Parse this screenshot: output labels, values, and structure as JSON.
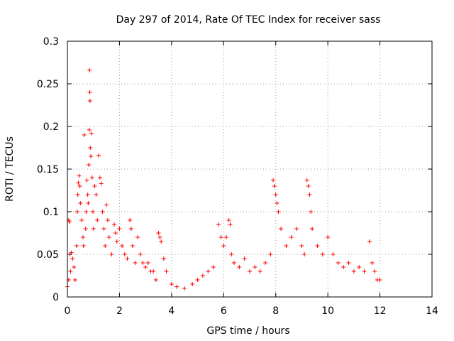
{
  "chart_data": {
    "type": "scatter",
    "title": "Day 297 of 2014, Rate Of TEC Index for receiver sass",
    "xlabel": "GPS time / hours",
    "ylabel": "ROTI / TECUs",
    "xlim": [
      0,
      14
    ],
    "ylim": [
      0,
      0.3
    ],
    "xticks": [
      0,
      2,
      4,
      6,
      8,
      10,
      12,
      14
    ],
    "xtick_labels": [
      "0",
      "2",
      "4",
      "6",
      "8",
      "10",
      "12",
      "14"
    ],
    "yticks": [
      0,
      0.05,
      0.1,
      0.15,
      0.2,
      0.25,
      0.3
    ],
    "ytick_labels": [
      "0",
      "0.05",
      "0.1",
      "0.15",
      "0.2",
      "0.25",
      "0.3"
    ],
    "grid": true,
    "marker": "+",
    "series_color": "#ff0000",
    "series": [
      {
        "name": "ROTI",
        "points": [
          [
            0.0,
            0.012
          ],
          [
            0.05,
            0.02
          ],
          [
            0.05,
            0.09
          ],
          [
            0.08,
            0.088
          ],
          [
            0.1,
            0.05
          ],
          [
            0.12,
            0.03
          ],
          [
            0.15,
            0.052
          ],
          [
            0.2,
            0.045
          ],
          [
            0.25,
            0.035
          ],
          [
            0.3,
            0.02
          ],
          [
            0.35,
            0.06
          ],
          [
            0.38,
            0.1
          ],
          [
            0.4,
            0.12
          ],
          [
            0.42,
            0.134
          ],
          [
            0.45,
            0.142
          ],
          [
            0.48,
            0.13
          ],
          [
            0.5,
            0.11
          ],
          [
            0.55,
            0.09
          ],
          [
            0.6,
            0.07
          ],
          [
            0.62,
            0.06
          ],
          [
            0.65,
            0.19
          ],
          [
            0.7,
            0.08
          ],
          [
            0.72,
            0.1
          ],
          [
            0.75,
            0.137
          ],
          [
            0.78,
            0.12
          ],
          [
            0.8,
            0.11
          ],
          [
            0.82,
            0.155
          ],
          [
            0.84,
            0.196
          ],
          [
            0.85,
            0.266
          ],
          [
            0.86,
            0.24
          ],
          [
            0.87,
            0.23
          ],
          [
            0.88,
            0.175
          ],
          [
            0.9,
            0.165
          ],
          [
            0.92,
            0.192
          ],
          [
            0.95,
            0.14
          ],
          [
            0.98,
            0.1
          ],
          [
            1.0,
            0.08
          ],
          [
            1.05,
            0.13
          ],
          [
            1.1,
            0.12
          ],
          [
            1.15,
            0.09
          ],
          [
            1.2,
            0.166
          ],
          [
            1.25,
            0.14
          ],
          [
            1.3,
            0.133
          ],
          [
            1.35,
            0.1
          ],
          [
            1.4,
            0.08
          ],
          [
            1.45,
            0.06
          ],
          [
            1.5,
            0.108
          ],
          [
            1.55,
            0.09
          ],
          [
            1.6,
            0.07
          ],
          [
            1.7,
            0.05
          ],
          [
            1.8,
            0.085
          ],
          [
            1.85,
            0.075
          ],
          [
            1.9,
            0.065
          ],
          [
            2.0,
            0.08
          ],
          [
            2.1,
            0.06
          ],
          [
            2.2,
            0.05
          ],
          [
            2.3,
            0.045
          ],
          [
            2.4,
            0.09
          ],
          [
            2.45,
            0.08
          ],
          [
            2.5,
            0.06
          ],
          [
            2.6,
            0.04
          ],
          [
            2.7,
            0.07
          ],
          [
            2.8,
            0.05
          ],
          [
            2.9,
            0.04
          ],
          [
            3.0,
            0.035
          ],
          [
            3.1,
            0.04
          ],
          [
            3.2,
            0.03
          ],
          [
            3.3,
            0.03
          ],
          [
            3.4,
            0.02
          ],
          [
            3.5,
            0.075
          ],
          [
            3.55,
            0.07
          ],
          [
            3.6,
            0.065
          ],
          [
            3.7,
            0.045
          ],
          [
            3.8,
            0.03
          ],
          [
            4.0,
            0.015
          ],
          [
            4.2,
            0.012
          ],
          [
            4.5,
            0.01
          ],
          [
            4.8,
            0.015
          ],
          [
            5.0,
            0.02
          ],
          [
            5.2,
            0.025
          ],
          [
            5.4,
            0.03
          ],
          [
            5.6,
            0.035
          ],
          [
            5.8,
            0.085
          ],
          [
            5.9,
            0.07
          ],
          [
            6.0,
            0.06
          ],
          [
            6.1,
            0.07
          ],
          [
            6.2,
            0.09
          ],
          [
            6.25,
            0.085
          ],
          [
            6.3,
            0.05
          ],
          [
            6.4,
            0.04
          ],
          [
            6.6,
            0.035
          ],
          [
            6.8,
            0.045
          ],
          [
            7.0,
            0.03
          ],
          [
            7.2,
            0.035
          ],
          [
            7.4,
            0.03
          ],
          [
            7.6,
            0.04
          ],
          [
            7.8,
            0.05
          ],
          [
            7.9,
            0.137
          ],
          [
            7.95,
            0.13
          ],
          [
            8.0,
            0.12
          ],
          [
            8.05,
            0.11
          ],
          [
            8.1,
            0.1
          ],
          [
            8.2,
            0.08
          ],
          [
            8.4,
            0.06
          ],
          [
            8.6,
            0.07
          ],
          [
            8.8,
            0.08
          ],
          [
            9.0,
            0.06
          ],
          [
            9.1,
            0.05
          ],
          [
            9.2,
            0.137
          ],
          [
            9.25,
            0.13
          ],
          [
            9.3,
            0.12
          ],
          [
            9.35,
            0.1
          ],
          [
            9.4,
            0.08
          ],
          [
            9.6,
            0.06
          ],
          [
            9.8,
            0.05
          ],
          [
            10.0,
            0.07
          ],
          [
            10.2,
            0.05
          ],
          [
            10.4,
            0.04
          ],
          [
            10.6,
            0.035
          ],
          [
            10.8,
            0.04
          ],
          [
            11.0,
            0.03
          ],
          [
            11.2,
            0.035
          ],
          [
            11.4,
            0.03
          ],
          [
            11.6,
            0.065
          ],
          [
            11.7,
            0.04
          ],
          [
            11.8,
            0.03
          ],
          [
            11.9,
            0.02
          ],
          [
            12.0,
            0.02
          ]
        ]
      }
    ]
  }
}
